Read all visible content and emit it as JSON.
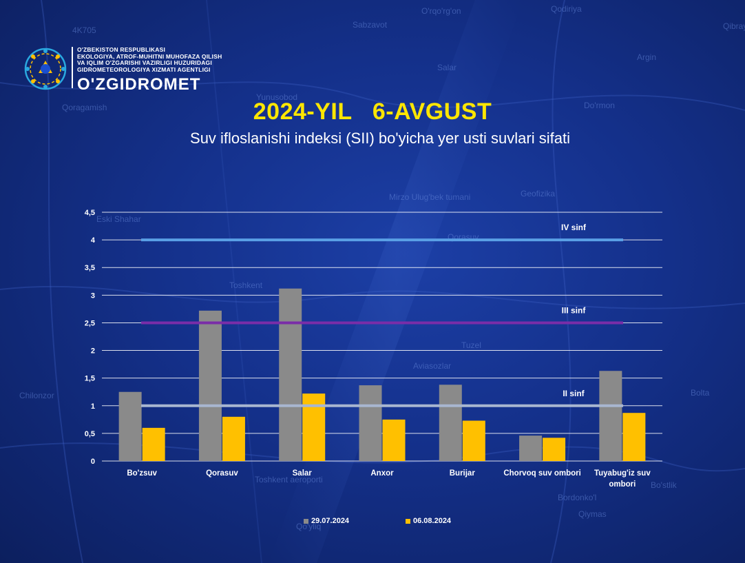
{
  "header": {
    "org_lines": [
      "O'ZBEKISTON RESPUBLIKASI",
      "EKOLOGIYA, ATROF-MUHITNI MUHOFAZA QILISH",
      "VA IQLIM O'ZGARISHI VAZIRLIGI HUZURIDAGI",
      "GIDROMETEOROLOGIYA XIZMATI AGENTLIGI"
    ],
    "org_name": "O'ZGIDROMET",
    "title": "2024-YIL   6-AVGUST",
    "subtitle": "Suv ifloslanishi indeksi (SII) bo'yicha yer usti suvlari sifati"
  },
  "background_map_labels": [
    "4K705",
    "Sabzavot",
    "O'rqo'rg'on",
    "Qodiriya",
    "Qibray",
    "Qoragamish",
    "Salar",
    "Argin",
    "Yunusobod",
    "Do'rmon",
    "Geofizika",
    "Mirzo Ulug'bek tumani",
    "Eski Shahar",
    "Qorasuv",
    "Toshkent",
    "Tuzel",
    "Aviasozlar",
    "Chilonzor",
    "Bo'stlik",
    "Bordonko'l",
    "Qiymas",
    "Toshkent aeroporti",
    "Qo'yliq",
    "Bolta"
  ],
  "colors": {
    "series1": "#8a8a8a",
    "series2": "#ffc000",
    "class2": "#a8b6d0",
    "class3": "#7a2da8",
    "class4": "#5aa0e6",
    "grid": "#ffffff"
  },
  "chart_data": {
    "type": "bar",
    "categories": [
      "Bo'zsuv",
      "Qorasuv",
      "Salar",
      "Anxor",
      "Burijar",
      "Chorvoq suv ombori",
      "Tuyabug'iz suv ombori"
    ],
    "category_lines": [
      [
        "Bo'zsuv"
      ],
      [
        "Qorasuv"
      ],
      [
        "Salar"
      ],
      [
        "Anxor"
      ],
      [
        "Burijar"
      ],
      [
        "Chorvoq suv ombori"
      ],
      [
        "Tuyabug'iz suv",
        "ombori"
      ]
    ],
    "series": [
      {
        "name": "29.07.2024",
        "values": [
          1.25,
          2.72,
          3.12,
          1.37,
          1.38,
          0.46,
          1.63
        ]
      },
      {
        "name": "06.08.2024",
        "values": [
          0.6,
          0.8,
          1.22,
          0.75,
          0.73,
          0.42,
          0.87
        ]
      }
    ],
    "ylim": [
      0,
      4.5
    ],
    "yticks": [
      "0",
      "0,5",
      "1",
      "1,5",
      "2",
      "2,5",
      "3",
      "3,5",
      "4",
      "4,5"
    ],
    "thresholds": [
      {
        "label": "IV sinf",
        "value": 4,
        "color_key": "class4"
      },
      {
        "label": "III sinf",
        "value": 2.5,
        "color_key": "class3"
      },
      {
        "label": "II sinf",
        "value": 1,
        "color_key": "class2"
      }
    ],
    "grid": true,
    "legend_position": "bottom"
  }
}
